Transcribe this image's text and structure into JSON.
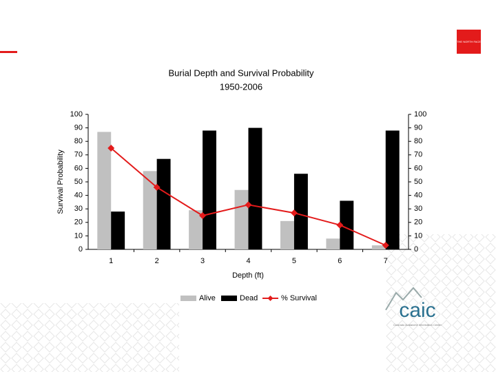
{
  "chart_data": {
    "type": "bar_line",
    "title": "Burial Depth and Survival Probability",
    "subtitle": "1950-2006",
    "y_label": "Survival Probability",
    "x_label": "Depth (ft)",
    "categories": [
      "1",
      "2",
      "3",
      "4",
      "5",
      "6",
      "7"
    ],
    "series": [
      {
        "name": "Alive",
        "type": "bar",
        "color": "#c0c0c0",
        "values": [
          87,
          58,
          29,
          44,
          21,
          8,
          3
        ]
      },
      {
        "name": "Dead",
        "type": "bar",
        "color": "#000000",
        "values": [
          28,
          67,
          88,
          90,
          56,
          36,
          88
        ]
      },
      {
        "name": "% Survival",
        "type": "line",
        "axis": "y2",
        "color": "#e31b1b",
        "values": [
          75,
          46,
          25,
          33,
          27,
          18,
          3
        ]
      }
    ],
    "ylim": [
      0,
      100
    ],
    "yticks": [
      0,
      10,
      20,
      30,
      40,
      50,
      60,
      70,
      80,
      90,
      100
    ],
    "y2lim": [
      0,
      100
    ],
    "y2ticks": [
      0,
      10,
      20,
      30,
      40,
      50,
      60,
      70,
      80,
      90,
      100
    ],
    "legend": "bottom"
  },
  "logos": {
    "brand": "THE NORTH FACE",
    "caic": "caic",
    "caic_name": "Colorado Avalanche Information Center"
  }
}
